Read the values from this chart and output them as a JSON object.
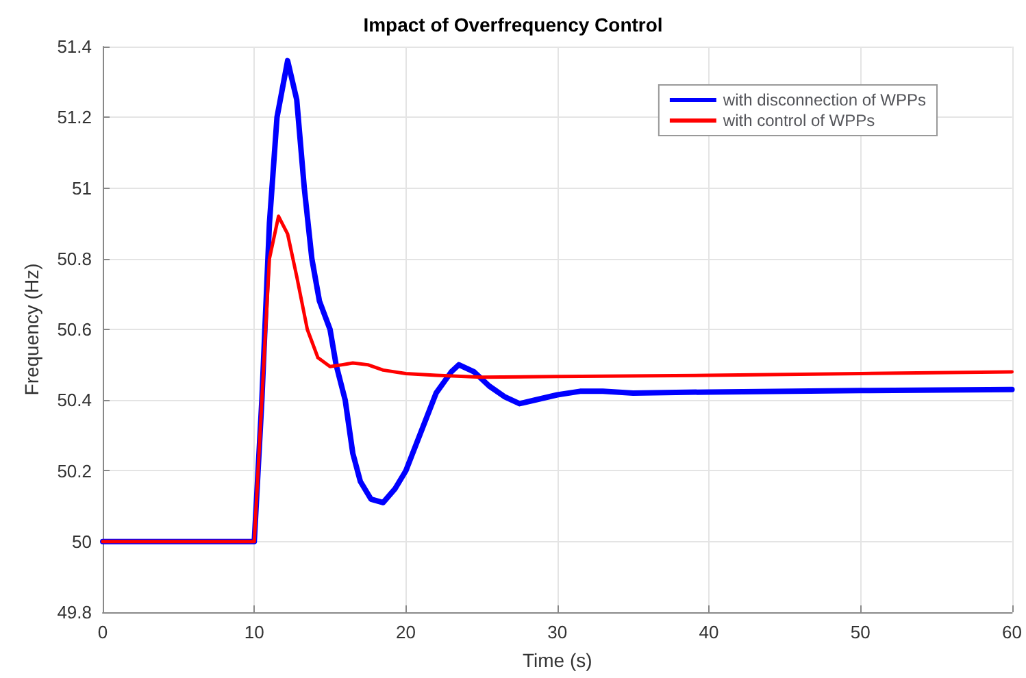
{
  "chart_data": {
    "type": "line",
    "title": "Impact of Overfrequency Control",
    "xlabel": "Time (s)",
    "ylabel": "Frequency (Hz)",
    "xlim": [
      0,
      60
    ],
    "xticks": [
      0,
      10,
      20,
      30,
      40,
      50,
      60
    ],
    "ylim": [
      49.8,
      51.4
    ],
    "yticks": [
      49.8,
      50,
      50.2,
      50.4,
      50.6,
      50.8,
      51,
      51.2,
      51.4
    ],
    "grid": true,
    "legend": "top right",
    "marker": "none",
    "line_style": "solid",
    "series": [
      {
        "name": "with disconnection of WPPs",
        "color": "#0000ff",
        "x": [
          0,
          10,
          10.5,
          11,
          11.5,
          12.2,
          12.8,
          13.3,
          13.8,
          14.3,
          15,
          15.4,
          16,
          16.5,
          17,
          17.7,
          18.5,
          19.3,
          20,
          21,
          22,
          23,
          23.5,
          24.5,
          25.5,
          26.5,
          27.5,
          28.5,
          30,
          31.5,
          33,
          35,
          40,
          50,
          60
        ],
        "values": [
          50,
          50,
          50.4,
          50.9,
          51.2,
          51.36,
          51.25,
          51,
          50.8,
          50.68,
          50.6,
          50.5,
          50.4,
          50.25,
          50.17,
          50.12,
          50.11,
          50.15,
          50.2,
          50.31,
          50.42,
          50.48,
          50.5,
          50.48,
          50.44,
          50.41,
          50.39,
          50.4,
          50.415,
          50.425,
          50.425,
          50.42,
          50.423,
          50.427,
          50.43
        ]
      },
      {
        "name": "with control of WPPs",
        "color": "#ff0000",
        "x": [
          0,
          10,
          10.5,
          11,
          11.6,
          12.2,
          12.8,
          13.5,
          14.2,
          15,
          15.8,
          16.5,
          17.5,
          18.5,
          20,
          22,
          25,
          30,
          40,
          50,
          60
        ],
        "values": [
          50,
          50,
          50.4,
          50.8,
          50.92,
          50.87,
          50.75,
          50.6,
          50.52,
          50.495,
          50.5,
          50.505,
          50.5,
          50.485,
          50.475,
          50.47,
          50.465,
          50.467,
          50.47,
          50.475,
          50.48
        ]
      }
    ]
  }
}
